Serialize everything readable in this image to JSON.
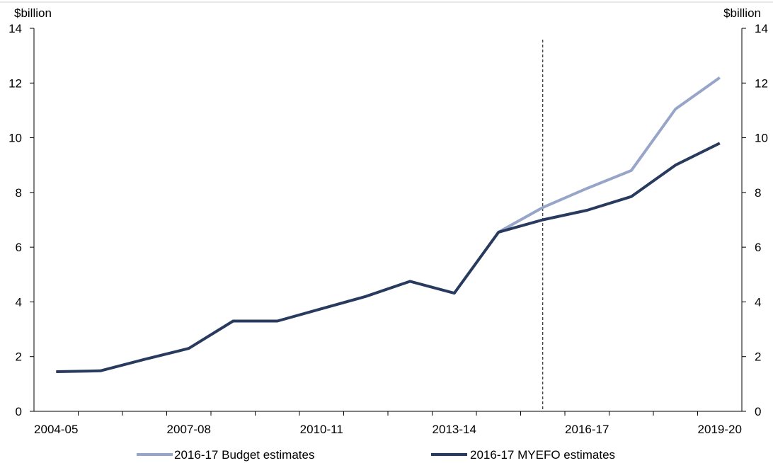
{
  "chart_data": {
    "type": "line",
    "x": [
      "2004-05",
      "2005-06",
      "2006-07",
      "2007-08",
      "2008-09",
      "2009-10",
      "2010-11",
      "2011-12",
      "2012-13",
      "2013-14",
      "2014-15",
      "2015-16",
      "2016-17",
      "2017-18",
      "2018-19",
      "2019-20"
    ],
    "x_tick_labels": [
      "2004-05",
      "2007-08",
      "2010-11",
      "2013-14",
      "2016-17",
      "2019-20"
    ],
    "series": [
      {
        "name": "2016-17 Budget estimates",
        "color": "#97A5C9",
        "values": [
          null,
          null,
          null,
          null,
          null,
          null,
          null,
          null,
          null,
          null,
          6.55,
          7.45,
          8.15,
          8.8,
          11.05,
          12.2
        ]
      },
      {
        "name": "2016-17 MYEFO estimates",
        "color": "#283A5E",
        "values": [
          1.45,
          1.48,
          1.9,
          2.3,
          3.3,
          3.3,
          3.75,
          4.2,
          4.75,
          4.32,
          6.55,
          7.0,
          7.35,
          7.85,
          9.0,
          9.8
        ]
      }
    ],
    "y_left_label": "$billion",
    "y_right_label": "$billion",
    "ylim": [
      0,
      14
    ],
    "y_ticks": [
      "0",
      "2",
      "4",
      "6",
      "8",
      "10",
      "12",
      "14"
    ],
    "reference_line_after": "2015-16",
    "grid": false,
    "legend_position": "bottom"
  }
}
